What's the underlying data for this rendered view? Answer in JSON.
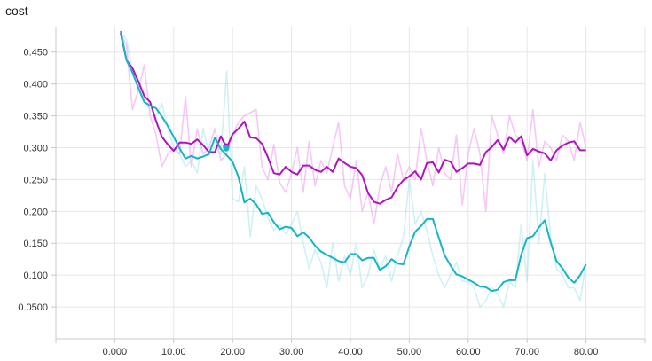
{
  "chart_data": {
    "type": "line",
    "title": "cost",
    "xlabel": "",
    "ylabel": "",
    "xlim": [
      -10,
      90
    ],
    "ylim": [
      0.0,
      0.49
    ],
    "x_ticks": [
      "0.000",
      "10.00",
      "20.00",
      "30.00",
      "40.00",
      "50.00",
      "60.00",
      "70.00",
      "80.00"
    ],
    "x_tick_values": [
      0,
      10,
      20,
      30,
      40,
      50,
      60,
      70,
      80
    ],
    "y_ticks": [
      "0.0500",
      "0.100",
      "0.150",
      "0.200",
      "0.250",
      "0.300",
      "0.350",
      "0.400",
      "0.450"
    ],
    "y_tick_values": [
      0.05,
      0.1,
      0.15,
      0.2,
      0.25,
      0.3,
      0.35,
      0.4,
      0.45
    ],
    "grid": true,
    "series": [
      {
        "color": "#ee82ee",
        "opacity": 0.45,
        "x": [
          1,
          2,
          3,
          4,
          5,
          6,
          7,
          8,
          9,
          10,
          11,
          12,
          13,
          14,
          15,
          16,
          17,
          18,
          19,
          20,
          21,
          22,
          23,
          24,
          25,
          26,
          27,
          28,
          29,
          30,
          31,
          32,
          33,
          34,
          35,
          36,
          37,
          38,
          39,
          40,
          41,
          42,
          43,
          44,
          45,
          46,
          47,
          48,
          49,
          50,
          51,
          52,
          53,
          54,
          55,
          56,
          57,
          58,
          59,
          60,
          61,
          62,
          63,
          64,
          65,
          66,
          67,
          68,
          69,
          70,
          71,
          72,
          73,
          74,
          75,
          76,
          77,
          78,
          79,
          80
        ],
        "y": [
          0.48,
          0.46,
          0.36,
          0.39,
          0.43,
          0.35,
          0.32,
          0.27,
          0.29,
          0.3,
          0.29,
          0.38,
          0.27,
          0.33,
          0.29,
          0.3,
          0.33,
          0.28,
          0.29,
          0.32,
          0.34,
          0.35,
          0.355,
          0.36,
          0.27,
          0.25,
          0.305,
          0.245,
          0.23,
          0.26,
          0.3,
          0.23,
          0.31,
          0.24,
          0.28,
          0.26,
          0.3,
          0.34,
          0.24,
          0.22,
          0.28,
          0.2,
          0.23,
          0.18,
          0.24,
          0.27,
          0.23,
          0.29,
          0.25,
          0.27,
          0.25,
          0.33,
          0.28,
          0.24,
          0.3,
          0.26,
          0.25,
          0.32,
          0.21,
          0.29,
          0.33,
          0.29,
          0.2,
          0.35,
          0.32,
          0.29,
          0.35,
          0.32,
          0.31,
          0.28,
          0.36,
          0.27,
          0.31,
          0.3,
          0.28,
          0.32,
          0.31,
          0.28,
          0.34,
          0.3
        ]
      },
      {
        "color": "#9fe3ec",
        "opacity": 0.5,
        "x": [
          1,
          2,
          3,
          4,
          5,
          6,
          7,
          8,
          9,
          10,
          11,
          12,
          13,
          14,
          15,
          16,
          17,
          18,
          19,
          20,
          21,
          22,
          23,
          24,
          25,
          26,
          27,
          28,
          29,
          30,
          31,
          32,
          33,
          34,
          35,
          36,
          37,
          38,
          39,
          40,
          41,
          42,
          43,
          44,
          45,
          46,
          47,
          48,
          49,
          50,
          51,
          52,
          53,
          54,
          55,
          56,
          57,
          58,
          59,
          60,
          61,
          62,
          63,
          64,
          65,
          66,
          67,
          68,
          69,
          70,
          71,
          72,
          73,
          74,
          75,
          76,
          77,
          78,
          79,
          80
        ],
        "y": [
          0.48,
          0.47,
          0.42,
          0.39,
          0.37,
          0.36,
          0.35,
          0.37,
          0.33,
          0.3,
          0.29,
          0.27,
          0.28,
          0.26,
          0.33,
          0.29,
          0.3,
          0.29,
          0.42,
          0.22,
          0.215,
          0.27,
          0.16,
          0.24,
          0.22,
          0.19,
          0.17,
          0.18,
          0.165,
          0.18,
          0.2,
          0.15,
          0.11,
          0.14,
          0.12,
          0.08,
          0.15,
          0.09,
          0.13,
          0.1,
          0.15,
          0.08,
          0.1,
          0.14,
          0.11,
          0.13,
          0.09,
          0.13,
          0.16,
          0.25,
          0.18,
          0.2,
          0.17,
          0.13,
          0.1,
          0.08,
          0.1,
          0.12,
          0.09,
          0.09,
          0.08,
          0.05,
          0.06,
          0.08,
          0.07,
          0.05,
          0.09,
          0.08,
          0.18,
          0.09,
          0.28,
          0.15,
          0.26,
          0.16,
          0.11,
          0.1,
          0.08,
          0.08,
          0.06,
          0.12
        ]
      },
      {
        "color": "#b012c0",
        "opacity": 1,
        "x": [
          1,
          2,
          3,
          4,
          5,
          6,
          7,
          8,
          9,
          10,
          11,
          12,
          13,
          14,
          15,
          16,
          17,
          18,
          19,
          20,
          21,
          22,
          23,
          24,
          25,
          26,
          27,
          28,
          29,
          30,
          31,
          32,
          33,
          34,
          35,
          36,
          37,
          38,
          39,
          40,
          41,
          42,
          43,
          44,
          45,
          46,
          47,
          48,
          49,
          50,
          51,
          52,
          53,
          54,
          55,
          56,
          57,
          58,
          59,
          60,
          61,
          62,
          63,
          64,
          65,
          66,
          67,
          68,
          69,
          70,
          71,
          72,
          73,
          74,
          75,
          76,
          77,
          78,
          79,
          80
        ],
        "y": [
          0.48,
          0.437,
          0.425,
          0.404,
          0.381,
          0.372,
          0.342,
          0.317,
          0.305,
          0.295,
          0.308,
          0.308,
          0.306,
          0.313,
          0.304,
          0.293,
          0.293,
          0.318,
          0.3,
          0.321,
          0.33,
          0.341,
          0.316,
          0.315,
          0.306,
          0.285,
          0.26,
          0.258,
          0.27,
          0.262,
          0.258,
          0.272,
          0.272,
          0.265,
          0.262,
          0.27,
          0.262,
          0.283,
          0.276,
          0.27,
          0.268,
          0.257,
          0.229,
          0.215,
          0.212,
          0.218,
          0.222,
          0.238,
          0.249,
          0.255,
          0.263,
          0.25,
          0.276,
          0.277,
          0.261,
          0.281,
          0.278,
          0.262,
          0.268,
          0.275,
          0.275,
          0.273,
          0.293,
          0.301,
          0.312,
          0.297,
          0.317,
          0.308,
          0.318,
          0.288,
          0.298,
          0.294,
          0.291,
          0.28,
          0.296,
          0.303,
          0.308,
          0.31,
          0.296,
          0.296
        ]
      },
      {
        "color": "#15b5c4",
        "opacity": 1,
        "x": [
          1,
          2,
          3,
          4,
          5,
          6,
          7,
          8,
          9,
          10,
          11,
          12,
          13,
          14,
          15,
          16,
          17,
          18,
          19,
          20,
          21,
          22,
          23,
          24,
          25,
          26,
          27,
          28,
          29,
          30,
          31,
          32,
          33,
          34,
          35,
          36,
          37,
          38,
          39,
          40,
          41,
          42,
          43,
          44,
          45,
          46,
          47,
          48,
          49,
          50,
          51,
          52,
          53,
          54,
          55,
          56,
          57,
          58,
          59,
          60,
          61,
          62,
          63,
          64,
          65,
          66,
          67,
          68,
          69,
          70,
          71,
          72,
          73,
          74,
          75,
          76,
          77,
          78,
          79,
          80
        ],
        "y": [
          0.483,
          0.437,
          0.418,
          0.394,
          0.372,
          0.366,
          0.362,
          0.349,
          0.334,
          0.317,
          0.299,
          0.283,
          0.287,
          0.283,
          0.286,
          0.29,
          0.316,
          0.298,
          0.288,
          0.278,
          0.254,
          0.214,
          0.22,
          0.211,
          0.196,
          0.198,
          0.183,
          0.172,
          0.176,
          0.174,
          0.161,
          0.167,
          0.159,
          0.146,
          0.137,
          0.132,
          0.127,
          0.122,
          0.12,
          0.133,
          0.133,
          0.123,
          0.127,
          0.127,
          0.108,
          0.114,
          0.125,
          0.118,
          0.117,
          0.145,
          0.168,
          0.177,
          0.188,
          0.188,
          0.159,
          0.131,
          0.115,
          0.101,
          0.098,
          0.093,
          0.088,
          0.082,
          0.081,
          0.075,
          0.077,
          0.089,
          0.092,
          0.092,
          0.132,
          0.158,
          0.161,
          0.175,
          0.186,
          0.151,
          0.122,
          0.111,
          0.096,
          0.088,
          0.1,
          0.117
        ]
      }
    ],
    "markers": [
      {
        "x": 18.9,
        "y": 0.302,
        "color": "#b012c0"
      },
      {
        "x": 18.9,
        "y": 0.299,
        "color": "#15b5c4"
      }
    ]
  }
}
